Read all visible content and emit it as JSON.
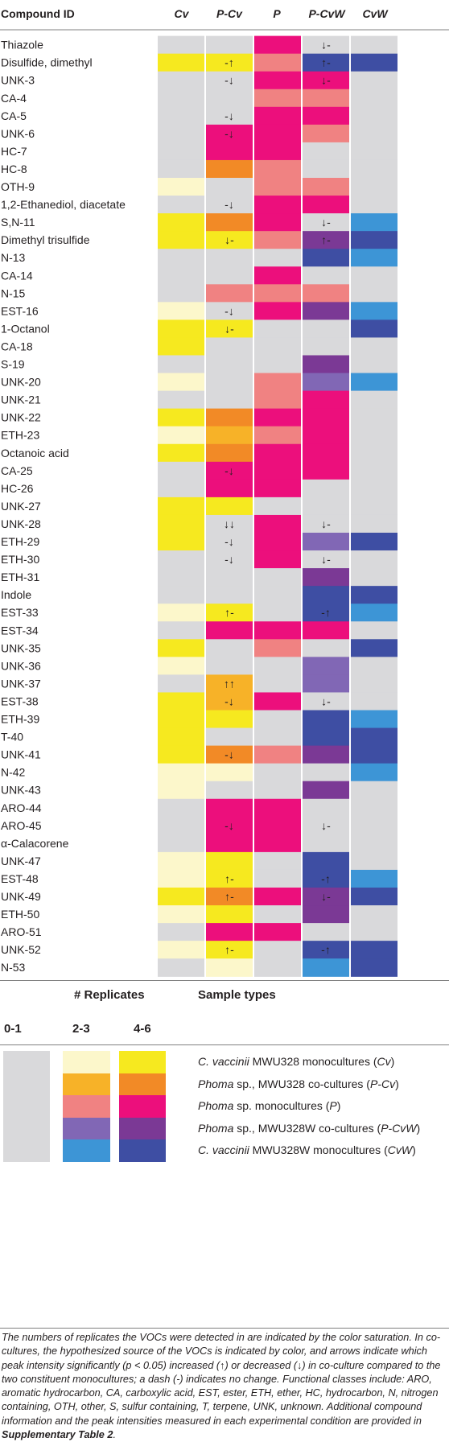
{
  "chart_data": {
    "type": "heatmap",
    "header": {
      "compound_id": "Compound ID",
      "columns": [
        "Cv",
        "P-Cv",
        "P",
        "P-CvW",
        "CvW"
      ]
    },
    "colors": {
      "0": "#d9d9db",
      "C1": "#fcf7cb",
      "C2": "#f6e91f",
      "O1": "#f7b228",
      "O2": "#f28a26",
      "M1": "#f08282",
      "M2": "#ec0f7c",
      "V1": "#8167b5",
      "V2": "#7b3995",
      "B1": "#3d95d6",
      "B2": "#3e4ea3"
    },
    "rows": [
      {
        "name": "Thiazole",
        "cells": [
          "0",
          "0",
          "M2",
          "0",
          "0"
        ],
        "arrows": [
          "",
          "",
          "",
          "↓-",
          ""
        ]
      },
      {
        "name": "Disulfide, dimethyl",
        "cells": [
          "C2",
          "C2",
          "M1",
          "B2",
          "B2"
        ],
        "arrows": [
          "",
          "-↑",
          "",
          "↑-",
          ""
        ]
      },
      {
        "name": "UNK-3",
        "cells": [
          "0",
          "0",
          "M2",
          "M2",
          "0"
        ],
        "arrows": [
          "",
          "-↓",
          "",
          "↓-",
          ""
        ]
      },
      {
        "name": "CA-4",
        "cells": [
          "0",
          "0",
          "M1",
          "M1",
          "0"
        ],
        "arrows": [
          "",
          "",
          "",
          "",
          ""
        ]
      },
      {
        "name": "CA-5",
        "cells": [
          "0",
          "0",
          "M2",
          "M2",
          "0"
        ],
        "arrows": [
          "",
          "-↓",
          "",
          "",
          ""
        ]
      },
      {
        "name": "UNK-6",
        "cells": [
          "0",
          "M2",
          "M2",
          "M1",
          "0"
        ],
        "arrows": [
          "",
          "-↓",
          "",
          "",
          ""
        ]
      },
      {
        "name": "HC-7",
        "cells": [
          "0",
          "M2",
          "M2",
          "0",
          "0"
        ],
        "arrows": [
          "",
          "",
          "",
          "",
          ""
        ]
      },
      {
        "name": "HC-8",
        "cells": [
          "0",
          "O2",
          "M1",
          "0",
          "0"
        ],
        "arrows": [
          "",
          "",
          "",
          "",
          ""
        ]
      },
      {
        "name": "OTH-9",
        "cells": [
          "C1",
          "0",
          "M1",
          "M1",
          "0"
        ],
        "arrows": [
          "",
          "",
          "",
          "",
          ""
        ]
      },
      {
        "name": "1,2-Ethanediol, diacetate",
        "cells": [
          "0",
          "0",
          "M2",
          "M2",
          "0"
        ],
        "arrows": [
          "",
          "-↓",
          "",
          "",
          ""
        ]
      },
      {
        "name": "S,N-11",
        "cells": [
          "C2",
          "O2",
          "M2",
          "0",
          "B1"
        ],
        "arrows": [
          "",
          "",
          "",
          "↓-",
          ""
        ]
      },
      {
        "name": "Dimethyl trisulfide",
        "cells": [
          "C2",
          "C2",
          "M1",
          "V2",
          "B2"
        ],
        "arrows": [
          "",
          "↓-",
          "",
          "↑-",
          ""
        ]
      },
      {
        "name": "N-13",
        "cells": [
          "0",
          "0",
          "0",
          "B2",
          "B1"
        ],
        "arrows": [
          "",
          "",
          "",
          "",
          ""
        ]
      },
      {
        "name": "CA-14",
        "cells": [
          "0",
          "0",
          "M2",
          "0",
          "0"
        ],
        "arrows": [
          "",
          "",
          "",
          "",
          ""
        ]
      },
      {
        "name": "N-15",
        "cells": [
          "0",
          "M1",
          "M1",
          "M1",
          "0"
        ],
        "arrows": [
          "",
          "",
          "",
          "",
          ""
        ]
      },
      {
        "name": "EST-16",
        "cells": [
          "C1",
          "0",
          "M2",
          "V2",
          "B1"
        ],
        "arrows": [
          "",
          "-↓",
          "",
          "",
          ""
        ]
      },
      {
        "name": "1-Octanol",
        "cells": [
          "C2",
          "C2",
          "0",
          "0",
          "B2"
        ],
        "arrows": [
          "",
          "↓-",
          "",
          "",
          ""
        ]
      },
      {
        "name": "CA-18",
        "cells": [
          "C2",
          "0",
          "0",
          "0",
          "0"
        ],
        "arrows": [
          "",
          "",
          "",
          "",
          ""
        ]
      },
      {
        "name": "S-19",
        "cells": [
          "0",
          "0",
          "0",
          "V2",
          "0"
        ],
        "arrows": [
          "",
          "",
          "",
          "",
          ""
        ]
      },
      {
        "name": "UNK-20",
        "cells": [
          "C1",
          "0",
          "M1",
          "V1",
          "B1"
        ],
        "arrows": [
          "",
          "",
          "",
          "",
          ""
        ]
      },
      {
        "name": "UNK-21",
        "cells": [
          "0",
          "0",
          "M1",
          "M2",
          "0"
        ],
        "arrows": [
          "",
          "",
          "",
          "",
          ""
        ]
      },
      {
        "name": "UNK-22",
        "cells": [
          "C2",
          "O2",
          "M2",
          "M2",
          "0"
        ],
        "arrows": [
          "",
          "",
          "",
          "",
          ""
        ]
      },
      {
        "name": "ETH-23",
        "cells": [
          "C1",
          "O1",
          "M1",
          "M2",
          "0"
        ],
        "arrows": [
          "",
          "",
          "",
          "",
          ""
        ]
      },
      {
        "name": "Octanoic acid",
        "cells": [
          "C2",
          "O2",
          "M2",
          "M2",
          "0"
        ],
        "arrows": [
          "",
          "",
          "",
          "",
          ""
        ]
      },
      {
        "name": "CA-25",
        "cells": [
          "0",
          "M2",
          "M2",
          "M2",
          "0"
        ],
        "arrows": [
          "",
          "-↓",
          "",
          "",
          ""
        ]
      },
      {
        "name": "HC-26",
        "cells": [
          "0",
          "M2",
          "M2",
          "0",
          "0"
        ],
        "arrows": [
          "",
          "",
          "",
          "",
          ""
        ]
      },
      {
        "name": "UNK-27",
        "cells": [
          "C2",
          "C2",
          "0",
          "0",
          "0"
        ],
        "arrows": [
          "",
          "",
          "",
          "",
          ""
        ]
      },
      {
        "name": "UNK-28",
        "cells": [
          "C2",
          "0",
          "M2",
          "0",
          "0"
        ],
        "arrows": [
          "",
          "↓↓",
          "",
          "↓-",
          ""
        ]
      },
      {
        "name": "ETH-29",
        "cells": [
          "C2",
          "0",
          "M2",
          "V1",
          "B2"
        ],
        "arrows": [
          "",
          "-↓",
          "",
          "",
          ""
        ]
      },
      {
        "name": "ETH-30",
        "cells": [
          "0",
          "0",
          "M2",
          "0",
          "0"
        ],
        "arrows": [
          "",
          "-↓",
          "",
          "↓-",
          ""
        ]
      },
      {
        "name": "ETH-31",
        "cells": [
          "0",
          "0",
          "0",
          "V2",
          "0"
        ],
        "arrows": [
          "",
          "",
          "",
          "",
          ""
        ]
      },
      {
        "name": "Indole",
        "cells": [
          "0",
          "0",
          "0",
          "B2",
          "B2"
        ],
        "arrows": [
          "",
          "",
          "",
          "",
          ""
        ]
      },
      {
        "name": "EST-33",
        "cells": [
          "C1",
          "C2",
          "0",
          "B2",
          "B1"
        ],
        "arrows": [
          "",
          "↑-",
          "",
          "-↑",
          ""
        ]
      },
      {
        "name": "EST-34",
        "cells": [
          "0",
          "M2",
          "M2",
          "M2",
          "0"
        ],
        "arrows": [
          "",
          "",
          "",
          "",
          ""
        ]
      },
      {
        "name": "UNK-35",
        "cells": [
          "C2",
          "0",
          "M1",
          "0",
          "B2"
        ],
        "arrows": [
          "",
          "",
          "",
          "",
          ""
        ]
      },
      {
        "name": "UNK-36",
        "cells": [
          "C1",
          "0",
          "0",
          "V1",
          "0"
        ],
        "arrows": [
          "",
          "",
          "",
          "",
          ""
        ]
      },
      {
        "name": "UNK-37",
        "cells": [
          "0",
          "O1",
          "0",
          "V1",
          "0"
        ],
        "arrows": [
          "",
          "↑↑",
          "",
          "",
          ""
        ]
      },
      {
        "name": "EST-38",
        "cells": [
          "C2",
          "O1",
          "M2",
          "0",
          "0"
        ],
        "arrows": [
          "",
          "-↓",
          "",
          "↓-",
          ""
        ]
      },
      {
        "name": "ETH-39",
        "cells": [
          "C2",
          "C2",
          "0",
          "B2",
          "B1"
        ],
        "arrows": [
          "",
          "",
          "",
          "",
          ""
        ]
      },
      {
        "name": "T-40",
        "cells": [
          "C2",
          "0",
          "0",
          "B2",
          "B2"
        ],
        "arrows": [
          "",
          "",
          "",
          "",
          ""
        ]
      },
      {
        "name": "UNK-41",
        "cells": [
          "C2",
          "O2",
          "M1",
          "V2",
          "B2"
        ],
        "arrows": [
          "",
          "-↓",
          "",
          "",
          ""
        ]
      },
      {
        "name": "N-42",
        "cells": [
          "C1",
          "C1",
          "0",
          "0",
          "B1"
        ],
        "arrows": [
          "",
          "",
          "",
          "",
          ""
        ]
      },
      {
        "name": "UNK-43",
        "cells": [
          "C1",
          "0",
          "0",
          "V2",
          "0"
        ],
        "arrows": [
          "",
          "",
          "",
          "",
          ""
        ]
      },
      {
        "name": "ARO-44",
        "cells": [
          "0",
          "M2",
          "M2",
          "0",
          "0"
        ],
        "arrows": [
          "",
          "",
          "",
          "",
          ""
        ]
      },
      {
        "name": "ARO-45",
        "cells": [
          "0",
          "M2",
          "M2",
          "0",
          "0"
        ],
        "arrows": [
          "",
          "-↓",
          "",
          "↓-",
          ""
        ]
      },
      {
        "name": "α-Calacorene",
        "cells": [
          "0",
          "M2",
          "M2",
          "0",
          "0"
        ],
        "arrows": [
          "",
          "",
          "",
          "",
          ""
        ]
      },
      {
        "name": "UNK-47",
        "cells": [
          "C1",
          "C2",
          "0",
          "B2",
          "0"
        ],
        "arrows": [
          "",
          "",
          "",
          "",
          ""
        ]
      },
      {
        "name": "EST-48",
        "cells": [
          "C1",
          "C2",
          "0",
          "B2",
          "B1"
        ],
        "arrows": [
          "",
          "↑-",
          "",
          "-↑",
          ""
        ]
      },
      {
        "name": "UNK-49",
        "cells": [
          "C2",
          "O2",
          "M2",
          "V2",
          "B2"
        ],
        "arrows": [
          "",
          "↑-",
          "",
          "↓-",
          ""
        ]
      },
      {
        "name": "ETH-50",
        "cells": [
          "C1",
          "C2",
          "0",
          "V2",
          "0"
        ],
        "arrows": [
          "",
          "",
          "",
          "",
          ""
        ]
      },
      {
        "name": "ARO-51",
        "cells": [
          "0",
          "M2",
          "M2",
          "0",
          "0"
        ],
        "arrows": [
          "",
          "",
          "",
          "",
          ""
        ]
      },
      {
        "name": "UNK-52",
        "cells": [
          "C1",
          "C2",
          "0",
          "B2",
          "B2"
        ],
        "arrows": [
          "",
          "↑-",
          "",
          "-↑",
          ""
        ]
      },
      {
        "name": "N-53",
        "cells": [
          "0",
          "C1",
          "0",
          "B1",
          "B2"
        ],
        "arrows": [
          "",
          "",
          "",
          "",
          ""
        ]
      }
    ]
  },
  "legend": {
    "replicates_title": "# Replicates",
    "sample_types_title": "Sample types",
    "rep_0_1": "0-1",
    "rep_2_3": "2-3",
    "rep_4_6": "4-6",
    "labels": [
      {
        "italic": "C. vaccinii",
        "rest": " MWU328 monocultures (",
        "abbr": "Cv",
        "end": ")"
      },
      {
        "italic": "Phoma",
        "rest": " sp., MWU328 co-cultures (",
        "abbr": "P-Cv",
        "end": ")"
      },
      {
        "italic": "Phoma",
        "rest": " sp. monocultures (",
        "abbr": "P",
        "end": ")"
      },
      {
        "italic": "Phoma",
        "rest": " sp., MWU328W co-cultures (",
        "abbr": "P-CvW",
        "end": ")"
      },
      {
        "italic": "C. vaccinii",
        "rest": " MWU328W monocultures (",
        "abbr": "CvW",
        "end": ")"
      }
    ]
  },
  "caption": {
    "text": "The numbers of replicates the VOCs were detected in are indicated by the color saturation. In co-cultures, the hypothesized source of the VOCs is indicated by color, and arrows indicate which peak intensity significantly (p < 0.05) increased (↑) or decreased (↓) in co-culture compared to the two constituent monocultures; a dash (-) indicates no change. Functional classes include: ARO, aromatic hydrocarbon, CA, carboxylic acid, EST, ester, ETH, ether, HC, hydrocarbon, N, nitrogen containing, OTH, other, S, sulfur containing, T, terpene, UNK, unknown. Additional compound information and the peak intensities measured in each experimental condition are provided in ",
    "bold": "Supplementary Table 2",
    "end": "."
  }
}
